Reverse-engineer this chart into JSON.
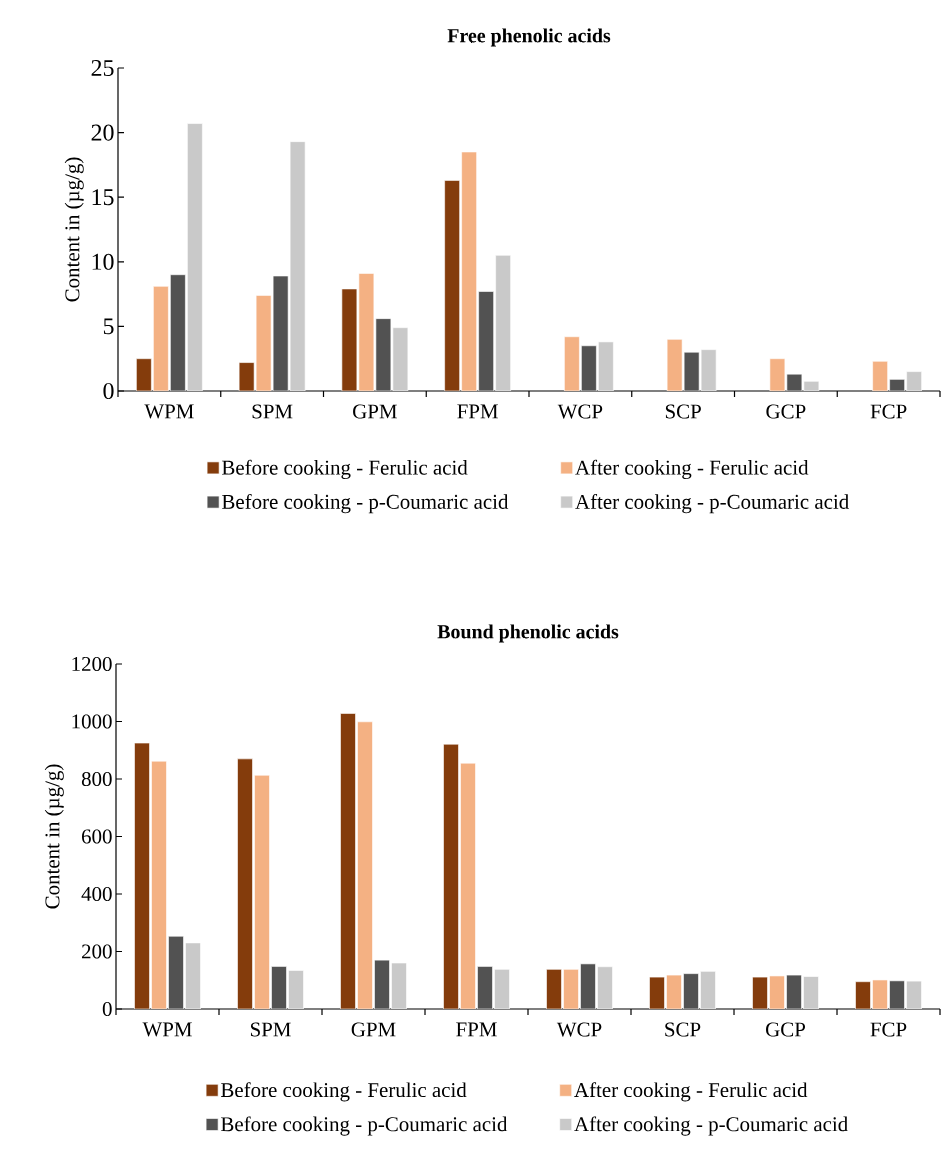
{
  "chart_data": [
    {
      "type": "bar",
      "title": "Free phenolic acids",
      "ylabel": "Content in (µg/g)",
      "categories": [
        "WPM",
        "SPM",
        "GPM",
        "FPM",
        "WCP",
        "SCP",
        "GCP",
        "FCP"
      ],
      "ylim": [
        0,
        25
      ],
      "yticks": [
        0,
        5,
        10,
        15,
        20,
        25
      ],
      "legend": "bottom",
      "series": [
        {
          "name": "Before cooking - Ferulic acid",
          "color": "#843c0c",
          "values": [
            2.5,
            2.2,
            7.9,
            16.3,
            null,
            null,
            null,
            null
          ]
        },
        {
          "name": "After cooking - Ferulic acid",
          "color": "#f4b183",
          "values": [
            8.1,
            7.4,
            9.1,
            18.5,
            4.2,
            4.0,
            2.5,
            2.3
          ]
        },
        {
          "name": "Before cooking - p-Coumaric acid",
          "color": "#525252",
          "values": [
            9.0,
            8.9,
            5.6,
            7.7,
            3.5,
            3.0,
            1.3,
            0.9
          ]
        },
        {
          "name": "After cooking - p-Coumaric acid",
          "color": "#c9c9c9",
          "values": [
            20.7,
            19.3,
            4.9,
            10.5,
            3.8,
            3.2,
            0.75,
            1.5
          ]
        }
      ]
    },
    {
      "type": "bar",
      "title": "Bound phenolic acids",
      "ylabel": "Content in (µg/g)",
      "categories": [
        "WPM",
        "SPM",
        "GPM",
        "FPM",
        "WCP",
        "SCP",
        "GCP",
        "FCP"
      ],
      "ylim": [
        0,
        1200
      ],
      "yticks": [
        0,
        200,
        400,
        600,
        800,
        1000,
        1200
      ],
      "legend": "bottom",
      "series": [
        {
          "name": "Before cooking - Ferulic acid",
          "color": "#843c0c",
          "values": [
            925,
            870,
            1028,
            921,
            138,
            111,
            111,
            95
          ]
        },
        {
          "name": "After cooking - Ferulic acid",
          "color": "#f4b183",
          "values": [
            862,
            813,
            999,
            855,
            138,
            118,
            115,
            101
          ]
        },
        {
          "name": "Before cooking - p-Coumaric acid",
          "color": "#525252",
          "values": [
            253,
            148,
            170,
            148,
            157,
            123,
            118,
            98
          ]
        },
        {
          "name": "After cooking - p-Coumaric acid",
          "color": "#c9c9c9",
          "values": [
            230,
            134,
            160,
            138,
            147,
            131,
            113,
            97
          ]
        }
      ]
    }
  ]
}
